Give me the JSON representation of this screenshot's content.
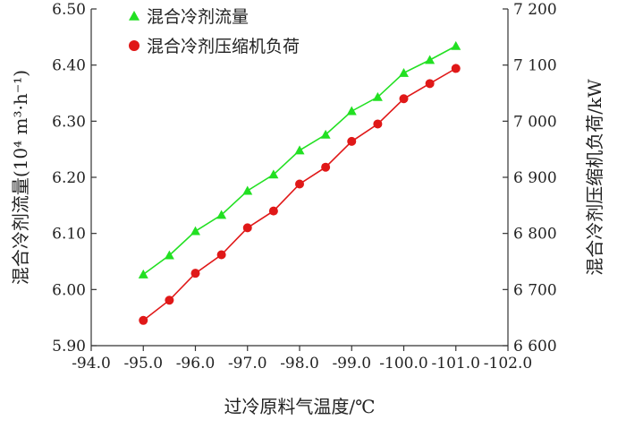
{
  "chart_data": {
    "type": "line",
    "xlabel": "过冷原料气温度/℃",
    "ylabel_left": "混合冷剂流量(10⁴ m³·h⁻¹)",
    "ylabel_right": "混合冷剂压缩机负荷/kW",
    "xlim": [
      -94.0,
      -102.0
    ],
    "ylim_left": [
      5.9,
      6.5
    ],
    "ylim_right": [
      6600,
      7200
    ],
    "x_ticks": [
      "-94.0",
      "-95.0",
      "-96.0",
      "-97.0",
      "-98.0",
      "-99.0",
      "-100.0",
      "-101.0",
      "-102.0"
    ],
    "y_left_ticks": [
      "5.90",
      "6.00",
      "6.10",
      "6.20",
      "6.30",
      "6.40",
      "6.50"
    ],
    "y_right_ticks": [
      "6 600",
      "6 700",
      "6 800",
      "6 900",
      "7 000",
      "7 100",
      "7 200"
    ],
    "grid": false,
    "legend_position": "top-left",
    "x": [
      -95.0,
      -95.5,
      -96.0,
      -96.5,
      -97.0,
      -97.5,
      -98.0,
      -98.5,
      -99.0,
      -99.5,
      -100.0,
      -100.5,
      -101.0
    ],
    "series": [
      {
        "name": "混合冷剂流量",
        "axis": "left",
        "color": "#22e022",
        "marker": "triangle",
        "values": [
          6.027,
          6.061,
          6.104,
          6.133,
          6.176,
          6.205,
          6.248,
          6.276,
          6.318,
          6.343,
          6.386,
          6.409,
          6.434
        ]
      },
      {
        "name": "混合冷剂压缩机负荷",
        "axis": "right",
        "color": "#e01818",
        "marker": "circle",
        "values": [
          6645,
          6681,
          6729,
          6762,
          6810,
          6840,
          6888,
          6918,
          6964,
          6995,
          7040,
          7067,
          7094
        ]
      }
    ]
  }
}
